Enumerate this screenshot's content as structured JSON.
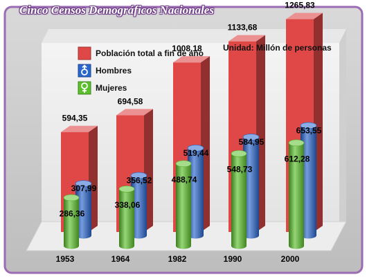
{
  "chart_data": {
    "type": "bar",
    "title": "Cinco Censos Demográficos Nacionales",
    "unit": "Unidad: Millón de personas",
    "categories": [
      "1953",
      "1964",
      "1982",
      "1990",
      "2000"
    ],
    "series": [
      {
        "name": "Población total a fin de año",
        "values": [
          594.35,
          694.58,
          1008.18,
          1133.68,
          1265.83
        ],
        "labels": [
          "594,35",
          "694,58",
          "1008,18",
          "1133,68",
          "1265,83"
        ],
        "color": "#e04848",
        "shape": "box",
        "icon": "square-icon"
      },
      {
        "name": "Hombres",
        "values": [
          307.99,
          356.52,
          519.44,
          584.95,
          653.55
        ],
        "labels": [
          "307,99",
          "356,52",
          "519,44",
          "584,95",
          "653,55"
        ],
        "color": "#2a66cc",
        "shape": "cylinder",
        "icon": "male-symbol-icon"
      },
      {
        "name": "Mujeres",
        "values": [
          286.36,
          338.06,
          488.74,
          548.73,
          612.28
        ],
        "labels": [
          "286,36",
          "338,06",
          "488,74",
          "548,73",
          "612,28"
        ],
        "color": "#5cc02c",
        "shape": "cylinder",
        "icon": "female-symbol-icon"
      }
    ],
    "ylim": [
      0,
      1400
    ],
    "grid": false,
    "legend": "top-left"
  }
}
